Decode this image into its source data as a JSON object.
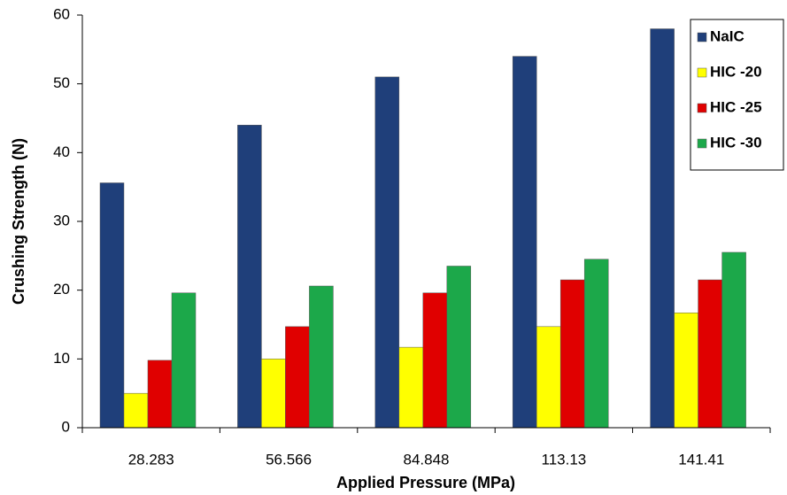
{
  "chart_data": {
    "type": "bar",
    "x_label": "Applied Pressure (MPa)",
    "y_label": "Crushing Strength (N)",
    "categories": [
      "28.283",
      "56.566",
      "84.848",
      "113.13",
      "141.41"
    ],
    "series": [
      {
        "name": "NaIC",
        "color": "#1f3f7a",
        "values": [
          35.6,
          44,
          51,
          54,
          58
        ]
      },
      {
        "name": "HIC -20",
        "color": "#ffff00",
        "values": [
          5,
          10,
          11.7,
          14.7,
          16.7
        ]
      },
      {
        "name": "HIC -25",
        "color": "#e00000",
        "values": [
          9.8,
          14.7,
          19.6,
          21.5,
          21.5
        ]
      },
      {
        "name": "HIC -30",
        "color": "#1ca84a",
        "values": [
          19.6,
          20.6,
          23.5,
          24.5,
          25.5
        ]
      }
    ],
    "ylim": [
      0,
      60
    ],
    "yticks": [
      0,
      10,
      20,
      30,
      40,
      50,
      60
    ],
    "grid": false,
    "legend": "top-right"
  }
}
